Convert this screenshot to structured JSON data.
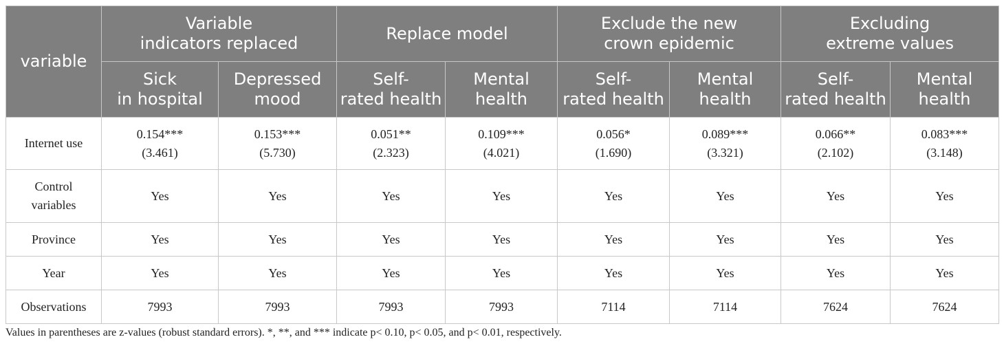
{
  "table": {
    "variable_header": "variable",
    "groups": [
      {
        "line1": "Variable",
        "line2": "indicators replaced"
      },
      {
        "line1": "Replace model",
        "line2": ""
      },
      {
        "line1": "Exclude the new",
        "line2": "crown epidemic"
      },
      {
        "line1": "Excluding",
        "line2": "extreme values"
      }
    ],
    "subheaders": [
      {
        "line1": "Sick",
        "line2": "in hospital"
      },
      {
        "line1": "Depressed",
        "line2": "mood"
      },
      {
        "line1": "Self-",
        "line2": "rated health"
      },
      {
        "line1": "Mental",
        "line2": "health"
      },
      {
        "line1": "Self-",
        "line2": "rated health"
      },
      {
        "line1": "Mental",
        "line2": "health"
      },
      {
        "line1": "Self-",
        "line2": "rated health"
      },
      {
        "line1": "Mental",
        "line2": "health"
      }
    ],
    "rows": {
      "internet_use": {
        "label": "Internet use",
        "coefs": [
          "0.154***",
          "0.153***",
          "0.051**",
          "0.109***",
          "0.056*",
          "0.089***",
          "0.066**",
          "0.083***"
        ],
        "zvals": [
          "(3.461)",
          "(5.730)",
          "(2.323)",
          "(4.021)",
          "(1.690)",
          "(3.321)",
          "(2.102)",
          "(3.148)"
        ]
      },
      "control_variables": {
        "label_line1": "Control",
        "label_line2": "variables",
        "values": [
          "Yes",
          "Yes",
          "Yes",
          "Yes",
          "Yes",
          "Yes",
          "Yes",
          "Yes"
        ]
      },
      "province": {
        "label": "Province",
        "values": [
          "Yes",
          "Yes",
          "Yes",
          "Yes",
          "Yes",
          "Yes",
          "Yes",
          "Yes"
        ]
      },
      "year": {
        "label": "Year",
        "values": [
          "Yes",
          "Yes",
          "Yes",
          "Yes",
          "Yes",
          "Yes",
          "Yes",
          "Yes"
        ]
      },
      "observations": {
        "label": "Observations",
        "values": [
          "7993",
          "7993",
          "7993",
          "7993",
          "7114",
          "7114",
          "7624",
          "7624"
        ]
      }
    }
  },
  "note": "Values in parentheses are z-values (robust standard errors). *, **, and *** indicate p< 0.10, p< 0.05, and p< 0.01, respectively.",
  "colors": {
    "header_bg": "#7f7f7f",
    "header_text": "#ffffff",
    "border": "#c8c8c8",
    "body_text": "#222222"
  }
}
